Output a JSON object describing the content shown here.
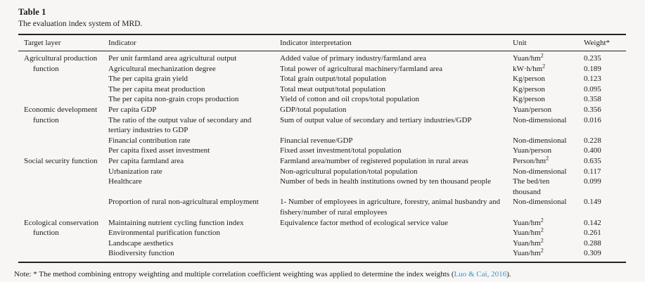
{
  "page": {
    "background_color": "#f7f6f4",
    "text_color": "#1c1c1c",
    "link_color": "#3f90c2"
  },
  "table": {
    "title": "Table 1",
    "caption": "The evaluation index system of MRD.",
    "columns": [
      "Target layer",
      "Indicator",
      "Indicator interpretation",
      "Unit",
      "Weight*"
    ],
    "groups": [
      {
        "target": "Agricultural production function",
        "rows": [
          {
            "indicator": "Per unit farmland area agricultural output",
            "interpretation": "Added value of primary industry/farmland area",
            "unit": "Yuan/hm^2",
            "weight": "0.235"
          },
          {
            "indicator": "Agricultural mechanization degree",
            "interpretation": "Total power of agricultural machinery/farmland area",
            "unit": "kW·h/hm^2",
            "weight": "0.189"
          },
          {
            "indicator": "The per capita grain yield",
            "interpretation": "Total grain output/total population",
            "unit": "Kg/person",
            "weight": "0.123"
          },
          {
            "indicator": "The per capita meat production",
            "interpretation": "Total meat output/total population",
            "unit": "Kg/person",
            "weight": "0.095"
          },
          {
            "indicator": "The per capita non-grain crops production",
            "interpretation": "Yield of cotton and oil crops/total population",
            "unit": "Kg/person",
            "weight": "0.358"
          }
        ]
      },
      {
        "target": "Economic development function",
        "rows": [
          {
            "indicator": "Per capita GDP",
            "interpretation": "GDP/total population",
            "unit": "Yuan/person",
            "weight": "0.356"
          },
          {
            "indicator": "The ratio of the output value of secondary and tertiary industries to GDP",
            "interpretation": "Sum of output value of secondary and tertiary industries/GDP",
            "unit": "Non-dimensional",
            "weight": "0.016"
          },
          {
            "indicator": "Financial contribution rate",
            "interpretation": "Financial revenue/GDP",
            "unit": "Non-dimensional",
            "weight": "0.228"
          },
          {
            "indicator": "Per capita fixed asset investment",
            "interpretation": "Fixed asset investment/total population",
            "unit": "Yuan/person",
            "weight": "0.400"
          }
        ]
      },
      {
        "target": "Social security function",
        "rows": [
          {
            "indicator": "Per capita farmland area",
            "interpretation": "Farmland area/number of registered population in rural areas",
            "unit": "Person/hm^2",
            "weight": "0.635"
          },
          {
            "indicator": "Urbanization rate",
            "interpretation": "Non-agricultural population/total population",
            "unit": "Non-dimensional",
            "weight": "0.117"
          },
          {
            "indicator": "Healthcare",
            "interpretation": "Number of beds in health institutions owned by ten thousand people",
            "unit": "The bed/ten thousand",
            "weight": "0.099"
          },
          {
            "indicator": "Proportion of rural non-agricultural employment",
            "interpretation": "1- Number of employees in agriculture, forestry, animal husbandry and fishery/number of rural employees",
            "unit": "Non-dimensional",
            "weight": "0.149"
          }
        ]
      },
      {
        "target": "Ecological conservation function",
        "rows": [
          {
            "indicator": "Maintaining nutrient cycling function index",
            "interpretation": "Equivalence factor method of ecological service value",
            "unit": "Yuan/hm^2",
            "weight": "0.142"
          },
          {
            "indicator": "Environmental purification function",
            "interpretation": "",
            "unit": "Yuan/hm^2",
            "weight": "0.261"
          },
          {
            "indicator": "Landscape aesthetics",
            "interpretation": "",
            "unit": "Yuan/hm^2",
            "weight": "0.288"
          },
          {
            "indicator": "Biodiversity function",
            "interpretation": "",
            "unit": "Yuan/hm^2",
            "weight": "0.309"
          }
        ]
      }
    ]
  },
  "footnote": {
    "prefix": "Note: * The method combining entropy weighting and multiple correlation coefficient weighting was applied to determine the index weights (",
    "link": "Luo & Cai, 2016",
    "suffix": ")."
  }
}
